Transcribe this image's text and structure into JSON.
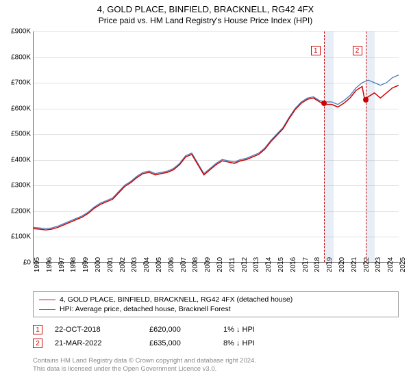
{
  "title": "4, GOLD PLACE, BINFIELD, BRACKNELL, RG42 4FX",
  "subtitle": "Price paid vs. HM Land Registry's House Price Index (HPI)",
  "chart": {
    "type": "line",
    "background_color": "#ffffff",
    "grid_color": "#e0e0e0",
    "axis_color": "#666666",
    "label_fontsize": 10,
    "x": {
      "min": 1995,
      "max": 2025,
      "ticks": [
        1995,
        1996,
        1997,
        1998,
        1999,
        2000,
        2001,
        2002,
        2003,
        2004,
        2005,
        2006,
        2007,
        2008,
        2009,
        2010,
        2011,
        2012,
        2013,
        2014,
        2015,
        2016,
        2017,
        2018,
        2019,
        2020,
        2021,
        2022,
        2023,
        2024,
        2025
      ]
    },
    "y": {
      "min": 0,
      "max": 900000,
      "ticks": [
        0,
        100000,
        200000,
        300000,
        400000,
        500000,
        600000,
        700000,
        800000,
        900000
      ],
      "tick_labels": [
        "£0",
        "£100K",
        "£200K",
        "£300K",
        "£400K",
        "£500K",
        "£600K",
        "£700K",
        "£800K",
        "£900K"
      ]
    },
    "series": [
      {
        "name": "4, GOLD PLACE, BINFIELD, BRACKNELL, RG42 4FX (detached house)",
        "color": "#cc0000",
        "line_width": 1.5,
        "points": [
          [
            1995.0,
            130000
          ],
          [
            1995.5,
            128000
          ],
          [
            1996.0,
            125000
          ],
          [
            1996.5,
            128000
          ],
          [
            1997.0,
            135000
          ],
          [
            1997.5,
            145000
          ],
          [
            1998.0,
            155000
          ],
          [
            1998.5,
            165000
          ],
          [
            1999.0,
            175000
          ],
          [
            1999.5,
            190000
          ],
          [
            2000.0,
            210000
          ],
          [
            2000.5,
            225000
          ],
          [
            2001.0,
            235000
          ],
          [
            2001.5,
            245000
          ],
          [
            2002.0,
            270000
          ],
          [
            2002.5,
            295000
          ],
          [
            2003.0,
            310000
          ],
          [
            2003.5,
            330000
          ],
          [
            2004.0,
            345000
          ],
          [
            2004.5,
            350000
          ],
          [
            2005.0,
            340000
          ],
          [
            2005.5,
            345000
          ],
          [
            2006.0,
            350000
          ],
          [
            2006.5,
            360000
          ],
          [
            2007.0,
            380000
          ],
          [
            2007.5,
            410000
          ],
          [
            2008.0,
            420000
          ],
          [
            2008.5,
            380000
          ],
          [
            2009.0,
            340000
          ],
          [
            2009.5,
            360000
          ],
          [
            2010.0,
            380000
          ],
          [
            2010.5,
            395000
          ],
          [
            2011.0,
            390000
          ],
          [
            2011.5,
            385000
          ],
          [
            2012.0,
            395000
          ],
          [
            2012.5,
            400000
          ],
          [
            2013.0,
            410000
          ],
          [
            2013.5,
            420000
          ],
          [
            2014.0,
            440000
          ],
          [
            2014.5,
            470000
          ],
          [
            2015.0,
            495000
          ],
          [
            2015.5,
            520000
          ],
          [
            2016.0,
            560000
          ],
          [
            2016.5,
            595000
          ],
          [
            2017.0,
            620000
          ],
          [
            2017.5,
            635000
          ],
          [
            2018.0,
            640000
          ],
          [
            2018.5,
            625000
          ],
          [
            2018.8,
            620000
          ],
          [
            2019.0,
            615000
          ],
          [
            2019.5,
            615000
          ],
          [
            2020.0,
            605000
          ],
          [
            2020.5,
            620000
          ],
          [
            2021.0,
            640000
          ],
          [
            2021.5,
            670000
          ],
          [
            2022.0,
            685000
          ],
          [
            2022.2,
            635000
          ],
          [
            2022.5,
            645000
          ],
          [
            2023.0,
            660000
          ],
          [
            2023.5,
            640000
          ],
          [
            2024.0,
            660000
          ],
          [
            2024.5,
            680000
          ],
          [
            2025.0,
            690000
          ]
        ]
      },
      {
        "name": "HPI: Average price, detached house, Bracknell Forest",
        "color": "#4a7ab8",
        "line_width": 1.3,
        "points": [
          [
            1995.0,
            135000
          ],
          [
            1995.5,
            133000
          ],
          [
            1996.0,
            130000
          ],
          [
            1996.5,
            133000
          ],
          [
            1997.0,
            140000
          ],
          [
            1997.5,
            150000
          ],
          [
            1998.0,
            160000
          ],
          [
            1998.5,
            170000
          ],
          [
            1999.0,
            180000
          ],
          [
            1999.5,
            195000
          ],
          [
            2000.0,
            215000
          ],
          [
            2000.5,
            230000
          ],
          [
            2001.0,
            240000
          ],
          [
            2001.5,
            250000
          ],
          [
            2002.0,
            275000
          ],
          [
            2002.5,
            300000
          ],
          [
            2003.0,
            315000
          ],
          [
            2003.5,
            335000
          ],
          [
            2004.0,
            350000
          ],
          [
            2004.5,
            355000
          ],
          [
            2005.0,
            345000
          ],
          [
            2005.5,
            350000
          ],
          [
            2006.0,
            355000
          ],
          [
            2006.5,
            365000
          ],
          [
            2007.0,
            385000
          ],
          [
            2007.5,
            415000
          ],
          [
            2008.0,
            425000
          ],
          [
            2008.5,
            385000
          ],
          [
            2009.0,
            345000
          ],
          [
            2009.5,
            365000
          ],
          [
            2010.0,
            385000
          ],
          [
            2010.5,
            400000
          ],
          [
            2011.0,
            395000
          ],
          [
            2011.5,
            390000
          ],
          [
            2012.0,
            400000
          ],
          [
            2012.5,
            405000
          ],
          [
            2013.0,
            415000
          ],
          [
            2013.5,
            425000
          ],
          [
            2014.0,
            445000
          ],
          [
            2014.5,
            475000
          ],
          [
            2015.0,
            500000
          ],
          [
            2015.5,
            525000
          ],
          [
            2016.0,
            565000
          ],
          [
            2016.5,
            600000
          ],
          [
            2017.0,
            625000
          ],
          [
            2017.5,
            640000
          ],
          [
            2018.0,
            645000
          ],
          [
            2018.5,
            630000
          ],
          [
            2019.0,
            625000
          ],
          [
            2019.5,
            625000
          ],
          [
            2020.0,
            615000
          ],
          [
            2020.5,
            630000
          ],
          [
            2021.0,
            650000
          ],
          [
            2021.5,
            680000
          ],
          [
            2022.0,
            700000
          ],
          [
            2022.5,
            710000
          ],
          [
            2023.0,
            700000
          ],
          [
            2023.5,
            690000
          ],
          [
            2024.0,
            700000
          ],
          [
            2024.5,
            720000
          ],
          [
            2025.0,
            730000
          ]
        ]
      }
    ],
    "highlight_bands": [
      {
        "from": 2018.81,
        "to": 2019.6
      },
      {
        "from": 2022.22,
        "to": 2023.0
      }
    ],
    "marker_points": [
      {
        "idx": "1",
        "x": 2018.81,
        "y": 620000,
        "label_x_offset": -12
      },
      {
        "idx": "2",
        "x": 2022.22,
        "y": 635000,
        "label_x_offset": -12
      }
    ]
  },
  "legend": {
    "items": [
      {
        "color": "#cc0000",
        "label": "4, GOLD PLACE, BINFIELD, BRACKNELL, RG42 4FX (detached house)"
      },
      {
        "color": "#4a7ab8",
        "label": "HPI: Average price, detached house, Bracknell Forest"
      }
    ]
  },
  "transactions": [
    {
      "idx": "1",
      "date": "22-OCT-2018",
      "price": "£620,000",
      "delta": "1% ↓ HPI"
    },
    {
      "idx": "2",
      "date": "21-MAR-2022",
      "price": "£635,000",
      "delta": "8% ↓ HPI"
    }
  ],
  "footer": {
    "line1": "Contains HM Land Registry data © Crown copyright and database right 2024.",
    "line2": "This data is licensed under the Open Government Licence v3.0."
  }
}
